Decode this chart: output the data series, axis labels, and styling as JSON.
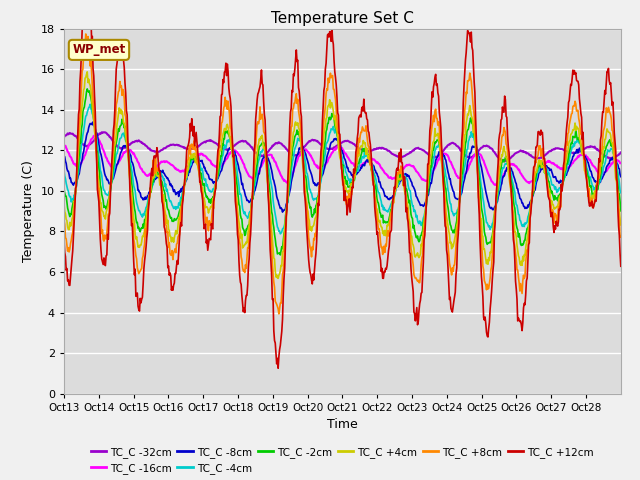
{
  "title": "Temperature Set C",
  "xlabel": "Time",
  "ylabel": "Temperature (C)",
  "ylim": [
    0,
    18
  ],
  "yticks": [
    0,
    2,
    4,
    6,
    8,
    10,
    12,
    14,
    16,
    18
  ],
  "plot_bg_color": "#dcdcdc",
  "fig_bg_color": "#f0f0f0",
  "annotation_text": "WP_met",
  "annotation_bg": "#ffffcc",
  "annotation_border": "#aa8800",
  "series": [
    {
      "label": "TC_C -32cm",
      "color": "#9900cc",
      "depth": -32
    },
    {
      "label": "TC_C -16cm",
      "color": "#ff00ff",
      "depth": -16
    },
    {
      "label": "TC_C -8cm",
      "color": "#0000cc",
      "depth": -8
    },
    {
      "label": "TC_C -4cm",
      "color": "#00cccc",
      "depth": -4
    },
    {
      "label": "TC_C -2cm",
      "color": "#00cc00",
      "depth": -2
    },
    {
      "label": "TC_C +4cm",
      "color": "#cccc00",
      "depth": 4
    },
    {
      "label": "TC_C +8cm",
      "color": "#ff8800",
      "depth": 8
    },
    {
      "label": "TC_C +12cm",
      "color": "#cc0000",
      "depth": 12
    }
  ],
  "xtick_labels": [
    "Oct 13",
    "Oct 14",
    "Oct 15",
    "Oct 16",
    "Oct 17",
    "Oct 18",
    "Oct 19",
    "Oct 20",
    "Oct 21",
    "Oct 22",
    "Oct 23",
    "Oct 24",
    "Oct 25",
    "Oct 26",
    "Oct 27",
    "Oct 28"
  ],
  "n_days": 16,
  "n_points": 768
}
